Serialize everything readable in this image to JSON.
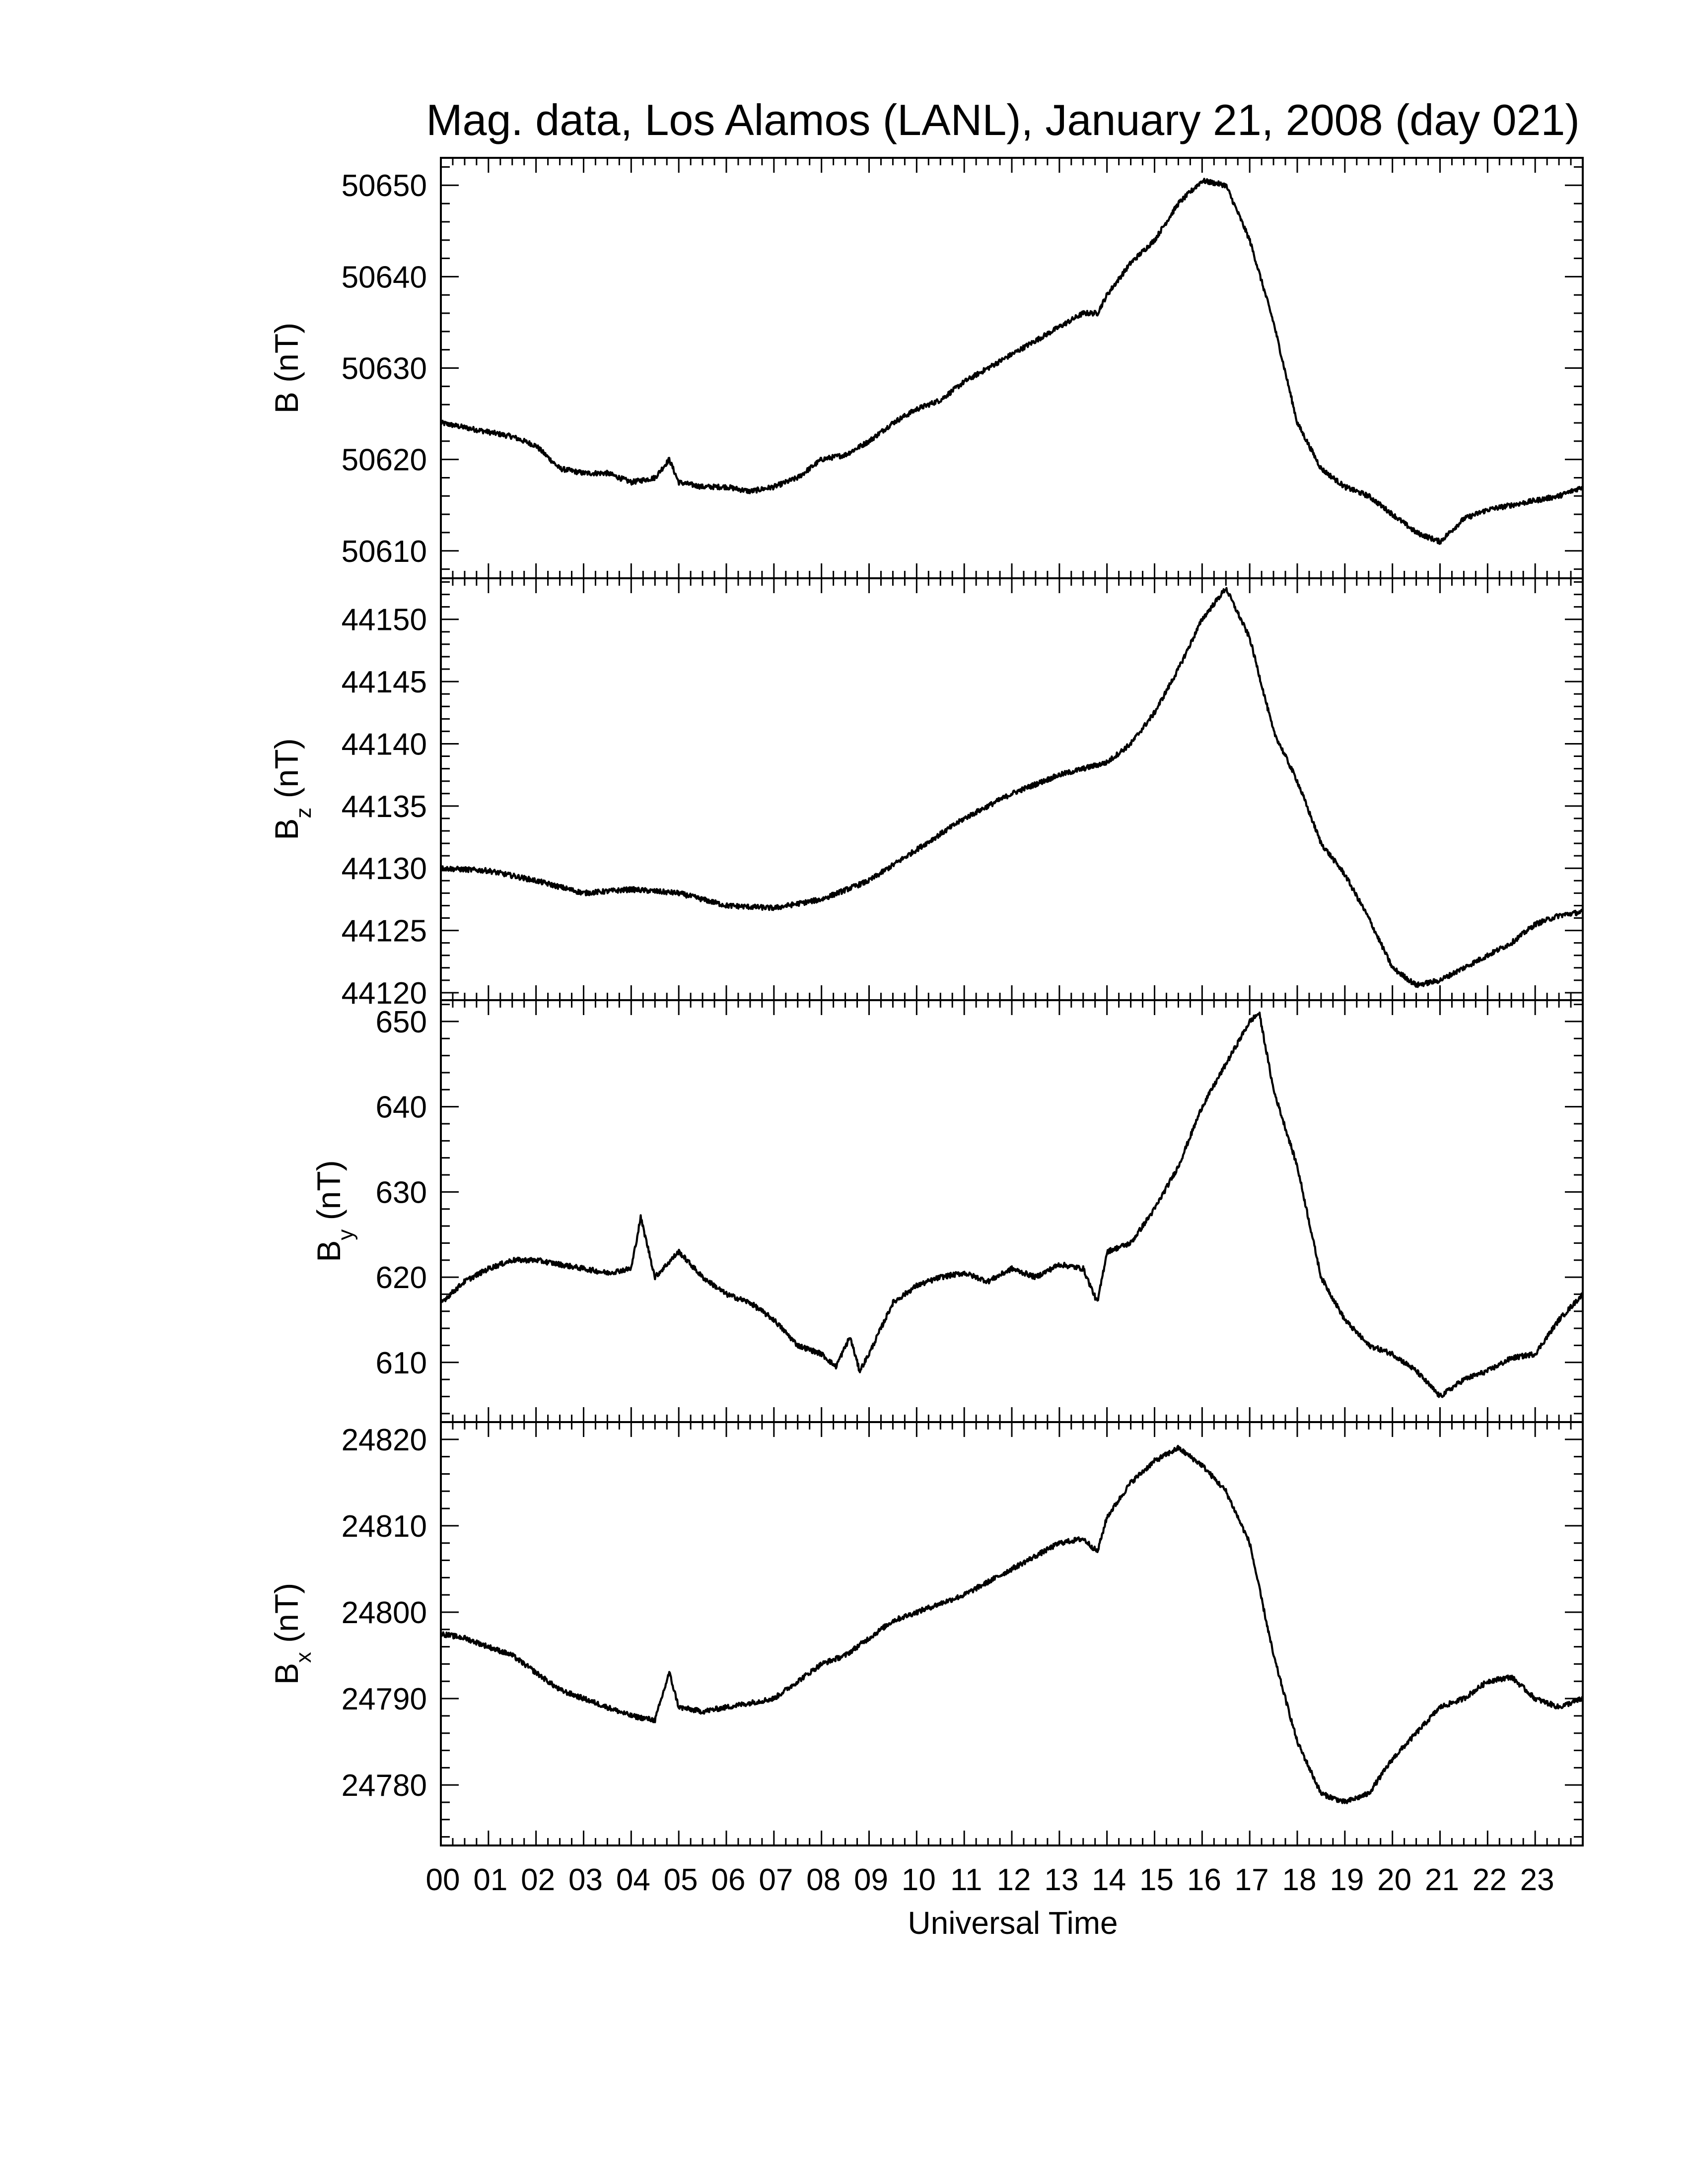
{
  "chart_data": {
    "type": "line",
    "title": "Mag. data, Los Alamos (LANL), January 21, 2008 (day 021)",
    "xlabel": "Universal Time",
    "x_unit": "hour",
    "xlim": [
      0,
      24
    ],
    "x_tick_labels": [
      "00",
      "01",
      "02",
      "03",
      "04",
      "05",
      "06",
      "07",
      "08",
      "09",
      "10",
      "11",
      "12",
      "13",
      "14",
      "15",
      "16",
      "17",
      "18",
      "19",
      "20",
      "21",
      "22",
      "23"
    ],
    "panels": [
      {
        "id": "B",
        "ylabel_main": "B",
        "ylabel_sub": "",
        "ylabel_unit": "(nT)",
        "ylim": [
          50607,
          50653
        ],
        "yticks": [
          50610,
          50620,
          50630,
          50640,
          50650
        ],
        "x": [
          0,
          0.5,
          1,
          1.5,
          2,
          2.5,
          3,
          3.5,
          4,
          4.5,
          4.8,
          5,
          5.5,
          6,
          6.5,
          7,
          7.5,
          8,
          8.5,
          9,
          9.5,
          10,
          10.5,
          11,
          11.5,
          12,
          12.5,
          13,
          13.5,
          13.8,
          14,
          14.5,
          15,
          15.5,
          16,
          16.5,
          17,
          17.5,
          18,
          18.5,
          19,
          19.5,
          20,
          20.5,
          21,
          21.5,
          22,
          22.5,
          23,
          23.5,
          24
        ],
        "values": [
          50624,
          50623.5,
          50623,
          50622.5,
          50621.5,
          50619,
          50618.5,
          50618.5,
          50617.5,
          50618,
          50620,
          50617.5,
          50617,
          50617,
          50616.5,
          50617,
          50618,
          50620,
          50620.5,
          50622,
          50624,
          50625.5,
          50626.5,
          50628.5,
          50630,
          50631.5,
          50633,
          50634.5,
          50636,
          50636,
          50638,
          50641.5,
          50644,
          50648,
          50650.5,
          50650,
          50644,
          50635,
          50624,
          50619,
          50617,
          50616,
          50614,
          50612,
          50611,
          50613.5,
          50614.5,
          50615,
          50615.5,
          50616,
          50617
        ]
      },
      {
        "id": "Bz",
        "ylabel_main": "B",
        "ylabel_sub": "z",
        "ylabel_unit": "(nT)",
        "ylim": [
          44119.4,
          44153.3
        ],
        "yticks": [
          44120,
          44125,
          44130,
          44135,
          44140,
          44145,
          44150
        ],
        "x": [
          0,
          1,
          2,
          3,
          4,
          5,
          6,
          7,
          8,
          9,
          10,
          11,
          12,
          13,
          14,
          14.5,
          15,
          15.5,
          16,
          16.5,
          17,
          17.5,
          18,
          18.5,
          19,
          19.5,
          20,
          20.5,
          21,
          21.5,
          22,
          22.5,
          23,
          23.5,
          24
        ],
        "values": [
          44130,
          44129.8,
          44129,
          44128,
          44128.3,
          44128,
          44127,
          44126.8,
          44127.5,
          44129,
          44131.5,
          44134,
          44136,
          44137.5,
          44138.5,
          44140,
          44142.5,
          44146,
          44150,
          44152.5,
          44148.5,
          44141,
          44137,
          44132,
          44129.5,
          44126,
          44122,
          44120.6,
          44121,
          44122,
          44123,
          44124,
          44125.5,
          44126.2,
          44126.5
        ]
      },
      {
        "id": "By",
        "ylabel_main": "B",
        "ylabel_sub": "y",
        "ylabel_unit": "(nT)",
        "ylim": [
          603,
          652.5
        ],
        "yticks": [
          610,
          620,
          630,
          640,
          650
        ],
        "x": [
          0,
          0.5,
          1,
          1.5,
          2,
          2.5,
          3,
          3.5,
          4,
          4.2,
          4.5,
          5,
          5.5,
          6,
          6.5,
          7,
          7.5,
          8,
          8.3,
          8.6,
          8.8,
          9,
          9.5,
          10,
          10.5,
          11,
          11.5,
          12,
          12.5,
          13,
          13.5,
          13.8,
          14,
          14.5,
          15,
          15.5,
          16,
          16.5,
          17,
          17.2,
          17.5,
          18,
          18.5,
          19,
          19.5,
          20,
          20.5,
          21,
          21.5,
          22,
          22.5,
          23,
          23.5,
          24
        ],
        "values": [
          617,
          619.5,
          621,
          622,
          622,
          621.5,
          621,
          620.5,
          621,
          627,
          620,
          623,
          620,
          618,
          617,
          615,
          612,
          611,
          609.5,
          613,
          609,
          611,
          617,
          619,
          620,
          620.5,
          619.5,
          621,
          620,
          621.5,
          621,
          617,
          623,
          624,
          628,
          633,
          640,
          645,
          650,
          651,
          642,
          633,
          620,
          615,
          612,
          611,
          609,
          606,
          608,
          609,
          610.5,
          611,
          615,
          618
        ]
      },
      {
        "id": "Bx",
        "ylabel_main": "B",
        "ylabel_sub": "x",
        "ylabel_unit": "(nT)",
        "ylim": [
          24773,
          24822
        ],
        "yticks": [
          24780,
          24790,
          24800,
          24810,
          24820
        ],
        "x": [
          0,
          0.5,
          1,
          1.5,
          2,
          2.5,
          3,
          3.5,
          4,
          4.5,
          4.8,
          5,
          5.5,
          6,
          6.5,
          7,
          7.5,
          8,
          8.5,
          9,
          9.5,
          10,
          10.5,
          11,
          11.5,
          12,
          12.5,
          13,
          13.5,
          13.8,
          14,
          14.5,
          15,
          15.5,
          16,
          16.5,
          17,
          17.5,
          18,
          18.5,
          19,
          19.5,
          20,
          20.5,
          21,
          21.5,
          22,
          22.5,
          23,
          23.5,
          24
        ],
        "values": [
          24797.5,
          24797,
          24796,
          24795,
          24793,
          24791,
          24790,
          24789,
          24788,
          24787.5,
          24793,
          24789,
          24788.5,
          24789,
          24789.5,
          24790,
          24792,
          24794,
          24795,
          24797,
          24799,
          24800,
          24801,
          24802,
          24803.5,
          24805,
          24806.5,
          24808,
          24808.5,
          24807,
          24811,
          24815,
          24817.5,
          24819,
          24817,
          24814,
          24808,
          24795,
          24785,
          24779,
          24778,
          24779,
          24783,
          24786,
          24789,
          24790,
          24792,
          24792.5,
          24790,
          24789,
          24790
        ]
      }
    ]
  }
}
